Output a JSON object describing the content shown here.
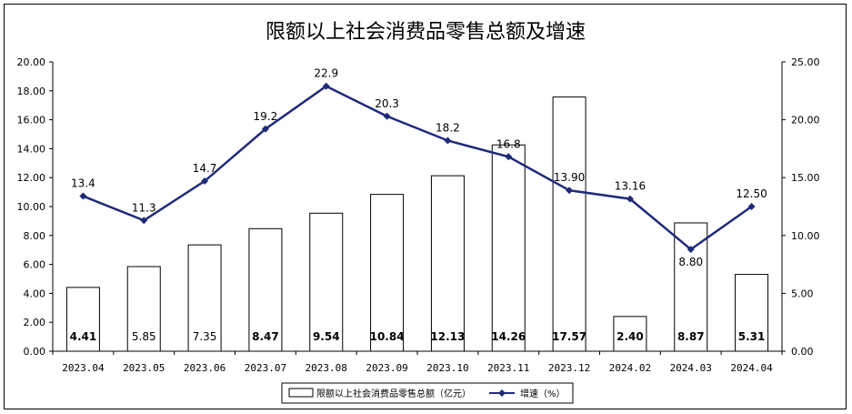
{
  "chart_data": {
    "type": "bar+line",
    "title": "限额以上社会消费品零售总额及增速",
    "categories": [
      "2023.04",
      "2023.05",
      "2023.06",
      "2023.07",
      "2023.08",
      "2023.09",
      "2023.10",
      "2023.11",
      "2023.12",
      "2024.02",
      "2024.03",
      "2024.04"
    ],
    "series": [
      {
        "name": "限额以上社会消费品零售总额（亿元）",
        "type": "bar",
        "axis": "left",
        "values": [
          4.41,
          5.85,
          7.35,
          8.47,
          9.54,
          10.84,
          12.13,
          14.26,
          17.57,
          2.4,
          8.87,
          5.31
        ],
        "labels": [
          "4.41",
          "5.85",
          "7.35",
          "8.47",
          "9.54",
          "10.84",
          "12.13",
          "14.26",
          "17.57",
          "2.40",
          "8.87",
          "5.31"
        ],
        "label_bold": [
          true,
          false,
          false,
          true,
          true,
          true,
          true,
          true,
          true,
          true,
          true,
          true
        ]
      },
      {
        "name": "增速（%）",
        "type": "line",
        "axis": "right",
        "values": [
          13.4,
          11.3,
          14.7,
          19.2,
          22.9,
          20.3,
          18.2,
          16.8,
          13.9,
          13.16,
          8.8,
          12.5
        ],
        "labels": [
          "13.4",
          "11.3",
          "14.7",
          "19.2",
          "22.9",
          "20.3",
          "18.2",
          "16.8",
          "13.90",
          "13.16",
          "8.80",
          "12.50"
        ],
        "color": "#1f2a7a"
      }
    ],
    "y_left": {
      "min": 0,
      "max": 20,
      "step": 2,
      "tick_labels": [
        "0.00",
        "2.00",
        "4.00",
        "6.00",
        "8.00",
        "10.00",
        "12.00",
        "14.00",
        "16.00",
        "18.00",
        "20.00"
      ]
    },
    "y_right": {
      "min": 0,
      "max": 25,
      "step": 5,
      "tick_labels": [
        "0.00",
        "5.00",
        "10.00",
        "15.00",
        "20.00",
        "25.00"
      ]
    },
    "grid": false,
    "legend_position": "bottom-center"
  }
}
